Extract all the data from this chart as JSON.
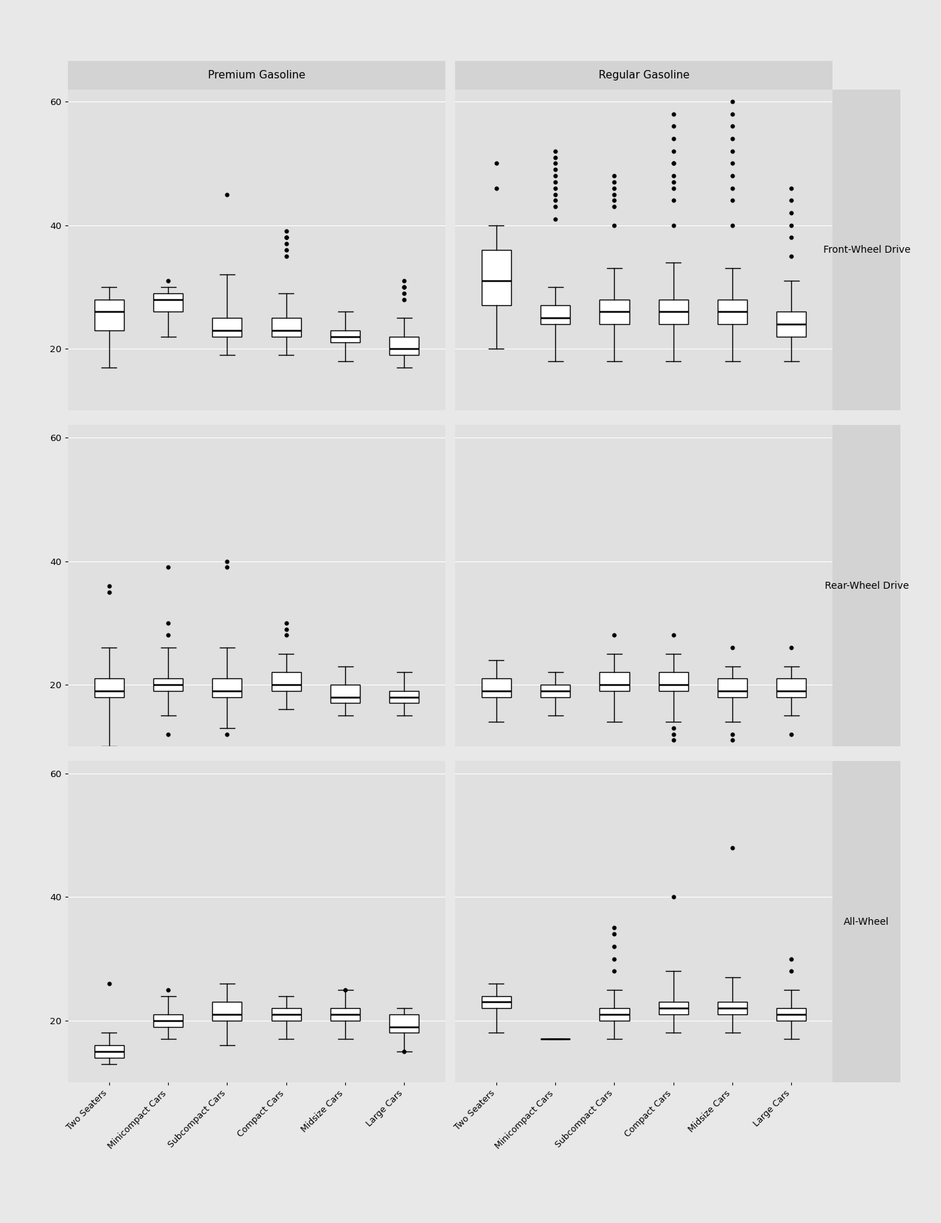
{
  "fuel_types": [
    "Premium Gasoline",
    "Regular Gasoline"
  ],
  "drive_types": [
    "Front-Wheel Drive",
    "Rear-Wheel Drive",
    "All-Wheel"
  ],
  "car_classes": [
    "Two Seaters",
    "Minicompact Cars",
    "Subcompact Cars",
    "Compact Cars",
    "Midsize Cars",
    "Large Cars"
  ],
  "bg_outer": "#e8e8e8",
  "bg_plot": "#e0e0e0",
  "bg_strip_col": "#d3d3d3",
  "bg_strip_row": "#d3d3d3",
  "bg_gap": "#ffffff",
  "grid_color": "#ffffff",
  "tick_fontsize": 9.5,
  "strip_fontsize": 11,
  "row_label_fontsize": 10,
  "xticklabel_fontsize": 9,
  "data": {
    "Premium Gasoline": {
      "Front-Wheel Drive": {
        "Two Seaters": {
          "q1": 23.0,
          "median": 26.0,
          "q3": 28.0,
          "whislo": 17.0,
          "whishi": 30.0,
          "fliers": []
        },
        "Minicompact Cars": {
          "q1": 26.0,
          "median": 28.0,
          "q3": 29.0,
          "whislo": 22.0,
          "whishi": 30.0,
          "fliers": [
            31.0
          ]
        },
        "Subcompact Cars": {
          "q1": 22.0,
          "median": 23.0,
          "q3": 25.0,
          "whislo": 19.0,
          "whishi": 32.0,
          "fliers": [
            45.0
          ]
        },
        "Compact Cars": {
          "q1": 22.0,
          "median": 23.0,
          "q3": 25.0,
          "whislo": 19.0,
          "whishi": 29.0,
          "fliers": [
            35.0,
            36.0,
            37.0,
            38.0,
            38.0,
            39.0
          ]
        },
        "Midsize Cars": {
          "q1": 21.0,
          "median": 22.0,
          "q3": 23.0,
          "whislo": 18.0,
          "whishi": 26.0,
          "fliers": []
        },
        "Large Cars": {
          "q1": 19.0,
          "median": 20.0,
          "q3": 22.0,
          "whislo": 17.0,
          "whishi": 25.0,
          "fliers": [
            28.0,
            29.0,
            30.0,
            30.0,
            31.0
          ]
        }
      },
      "Rear-Wheel Drive": {
        "Two Seaters": {
          "q1": 18.0,
          "median": 19.0,
          "q3": 21.0,
          "whislo": 10.0,
          "whishi": 26.0,
          "fliers": [
            35.0,
            36.0
          ]
        },
        "Minicompact Cars": {
          "q1": 19.0,
          "median": 20.0,
          "q3": 21.0,
          "whislo": 15.0,
          "whishi": 26.0,
          "fliers": [
            12.0,
            28.0,
            30.0,
            39.0
          ]
        },
        "Subcompact Cars": {
          "q1": 18.0,
          "median": 19.0,
          "q3": 21.0,
          "whislo": 13.0,
          "whishi": 26.0,
          "fliers": [
            12.0,
            39.0,
            40.0
          ]
        },
        "Compact Cars": {
          "q1": 19.0,
          "median": 20.0,
          "q3": 22.0,
          "whislo": 16.0,
          "whishi": 25.0,
          "fliers": [
            28.0,
            29.0,
            30.0
          ]
        },
        "Midsize Cars": {
          "q1": 17.0,
          "median": 18.0,
          "q3": 20.0,
          "whislo": 15.0,
          "whishi": 23.0,
          "fliers": []
        },
        "Large Cars": {
          "q1": 17.0,
          "median": 18.0,
          "q3": 19.0,
          "whislo": 15.0,
          "whishi": 22.0,
          "fliers": []
        }
      },
      "All-Wheel": {
        "Two Seaters": {
          "q1": 14.0,
          "median": 15.0,
          "q3": 16.0,
          "whislo": 13.0,
          "whishi": 18.0,
          "fliers": [
            26.0
          ]
        },
        "Minicompact Cars": {
          "q1": 19.0,
          "median": 20.0,
          "q3": 21.0,
          "whislo": 17.0,
          "whishi": 24.0,
          "fliers": [
            25.0
          ]
        },
        "Subcompact Cars": {
          "q1": 20.0,
          "median": 21.0,
          "q3": 23.0,
          "whislo": 16.0,
          "whishi": 26.0,
          "fliers": []
        },
        "Compact Cars": {
          "q1": 20.0,
          "median": 21.0,
          "q3": 22.0,
          "whislo": 17.0,
          "whishi": 24.0,
          "fliers": []
        },
        "Midsize Cars": {
          "q1": 20.0,
          "median": 21.0,
          "q3": 22.0,
          "whislo": 17.0,
          "whishi": 25.0,
          "fliers": [
            25.0
          ]
        },
        "Large Cars": {
          "q1": 18.0,
          "median": 19.0,
          "q3": 21.0,
          "whislo": 15.0,
          "whishi": 22.0,
          "fliers": [
            15.0
          ]
        }
      }
    },
    "Regular Gasoline": {
      "Front-Wheel Drive": {
        "Two Seaters": {
          "q1": 27.0,
          "median": 31.0,
          "q3": 36.0,
          "whislo": 20.0,
          "whishi": 40.0,
          "fliers": [
            46.0,
            50.0
          ]
        },
        "Minicompact Cars": {
          "q1": 24.0,
          "median": 25.0,
          "q3": 27.0,
          "whislo": 18.0,
          "whishi": 30.0,
          "fliers": [
            41.0,
            43.0,
            44.0,
            45.0,
            46.0,
            47.0,
            48.0,
            49.0,
            50.0,
            51.0,
            52.0
          ]
        },
        "Subcompact Cars": {
          "q1": 24.0,
          "median": 26.0,
          "q3": 28.0,
          "whislo": 18.0,
          "whishi": 33.0,
          "fliers": [
            40.0,
            43.0,
            44.0,
            45.0,
            46.0,
            47.0,
            48.0
          ]
        },
        "Compact Cars": {
          "q1": 24.0,
          "median": 26.0,
          "q3": 28.0,
          "whislo": 18.0,
          "whishi": 34.0,
          "fliers": [
            40.0,
            44.0,
            46.0,
            47.0,
            48.0,
            50.0,
            50.0,
            52.0,
            54.0,
            56.0,
            58.0
          ]
        },
        "Midsize Cars": {
          "q1": 24.0,
          "median": 26.0,
          "q3": 28.0,
          "whislo": 18.0,
          "whishi": 33.0,
          "fliers": [
            40.0,
            44.0,
            46.0,
            48.0,
            50.0,
            52.0,
            54.0,
            56.0,
            58.0,
            60.0
          ]
        },
        "Large Cars": {
          "q1": 22.0,
          "median": 24.0,
          "q3": 26.0,
          "whislo": 18.0,
          "whishi": 31.0,
          "fliers": [
            35.0,
            38.0,
            40.0,
            42.0,
            44.0,
            46.0
          ]
        }
      },
      "Rear-Wheel Drive": {
        "Two Seaters": {
          "q1": 18.0,
          "median": 19.0,
          "q3": 21.0,
          "whislo": 14.0,
          "whishi": 24.0,
          "fliers": []
        },
        "Minicompact Cars": {
          "q1": 18.0,
          "median": 19.0,
          "q3": 20.0,
          "whislo": 15.0,
          "whishi": 22.0,
          "fliers": []
        },
        "Subcompact Cars": {
          "q1": 19.0,
          "median": 20.0,
          "q3": 22.0,
          "whislo": 14.0,
          "whishi": 25.0,
          "fliers": [
            28.0
          ]
        },
        "Compact Cars": {
          "q1": 19.0,
          "median": 20.0,
          "q3": 22.0,
          "whislo": 14.0,
          "whishi": 25.0,
          "fliers": [
            11.0,
            12.0,
            13.0,
            28.0
          ]
        },
        "Midsize Cars": {
          "q1": 18.0,
          "median": 19.0,
          "q3": 21.0,
          "whislo": 14.0,
          "whishi": 23.0,
          "fliers": [
            11.0,
            12.0,
            26.0
          ]
        },
        "Large Cars": {
          "q1": 18.0,
          "median": 19.0,
          "q3": 21.0,
          "whislo": 15.0,
          "whishi": 23.0,
          "fliers": [
            12.0,
            26.0
          ]
        }
      },
      "All-Wheel": {
        "Two Seaters": {
          "q1": 22.0,
          "median": 23.0,
          "q3": 24.0,
          "whislo": 18.0,
          "whishi": 26.0,
          "fliers": []
        },
        "Minicompact Cars": {
          "q1": 17.0,
          "median": 17.0,
          "q3": 17.0,
          "whislo": 17.0,
          "whishi": 17.0,
          "fliers": []
        },
        "Subcompact Cars": {
          "q1": 20.0,
          "median": 21.0,
          "q3": 22.0,
          "whislo": 17.0,
          "whishi": 25.0,
          "fliers": [
            28.0,
            30.0,
            32.0,
            34.0,
            35.0
          ]
        },
        "Compact Cars": {
          "q1": 21.0,
          "median": 22.0,
          "q3": 23.0,
          "whislo": 18.0,
          "whishi": 28.0,
          "fliers": [
            40.0
          ]
        },
        "Midsize Cars": {
          "q1": 21.0,
          "median": 22.0,
          "q3": 23.0,
          "whislo": 18.0,
          "whishi": 27.0,
          "fliers": [
            48.0
          ]
        },
        "Large Cars": {
          "q1": 20.0,
          "median": 21.0,
          "q3": 22.0,
          "whislo": 17.0,
          "whishi": 25.0,
          "fliers": [
            28.0,
            30.0
          ]
        }
      }
    }
  },
  "ylim": [
    10,
    62
  ],
  "yticks": [
    20,
    40,
    60
  ],
  "figsize": [
    13.44,
    17.47
  ],
  "dpi": 100
}
